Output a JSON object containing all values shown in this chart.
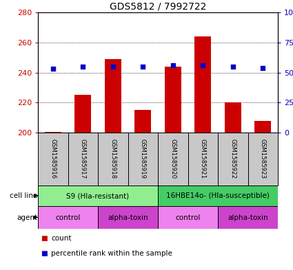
{
  "title": "GDS5812 / 7992722",
  "samples": [
    "GSM1585916",
    "GSM1585917",
    "GSM1585918",
    "GSM1585919",
    "GSM1585920",
    "GSM1585921",
    "GSM1585922",
    "GSM1585923"
  ],
  "counts": [
    200.5,
    225,
    249,
    215,
    244,
    264,
    220,
    208
  ],
  "percentiles": [
    53,
    55,
    55,
    55,
    56,
    56,
    55,
    54
  ],
  "ylim_left": [
    200,
    280
  ],
  "ylim_right": [
    0,
    100
  ],
  "yticks_left": [
    200,
    220,
    240,
    260,
    280
  ],
  "yticks_right": [
    0,
    25,
    50,
    75,
    100
  ],
  "bar_color": "#cc0000",
  "dot_color": "#0000cc",
  "bar_base": 200,
  "cell_line_groups": [
    {
      "label": "S9 (Hla-resistant)",
      "start": 0,
      "end": 4,
      "color": "#90ee90"
    },
    {
      "label": "16HBE14o- (Hla-susceptible)",
      "start": 4,
      "end": 8,
      "color": "#44cc66"
    }
  ],
  "agent_groups": [
    {
      "label": "control",
      "start": 0,
      "end": 2,
      "color": "#ee82ee"
    },
    {
      "label": "alpha-toxin",
      "start": 2,
      "end": 4,
      "color": "#cc44cc"
    },
    {
      "label": "control",
      "start": 4,
      "end": 6,
      "color": "#ee82ee"
    },
    {
      "label": "alpha-toxin",
      "start": 6,
      "end": 8,
      "color": "#cc44cc"
    }
  ],
  "sample_box_color": "#c8c8c8",
  "left_tick_color": "#cc0000",
  "right_tick_color": "#0000cc",
  "bar_width": 0.55
}
